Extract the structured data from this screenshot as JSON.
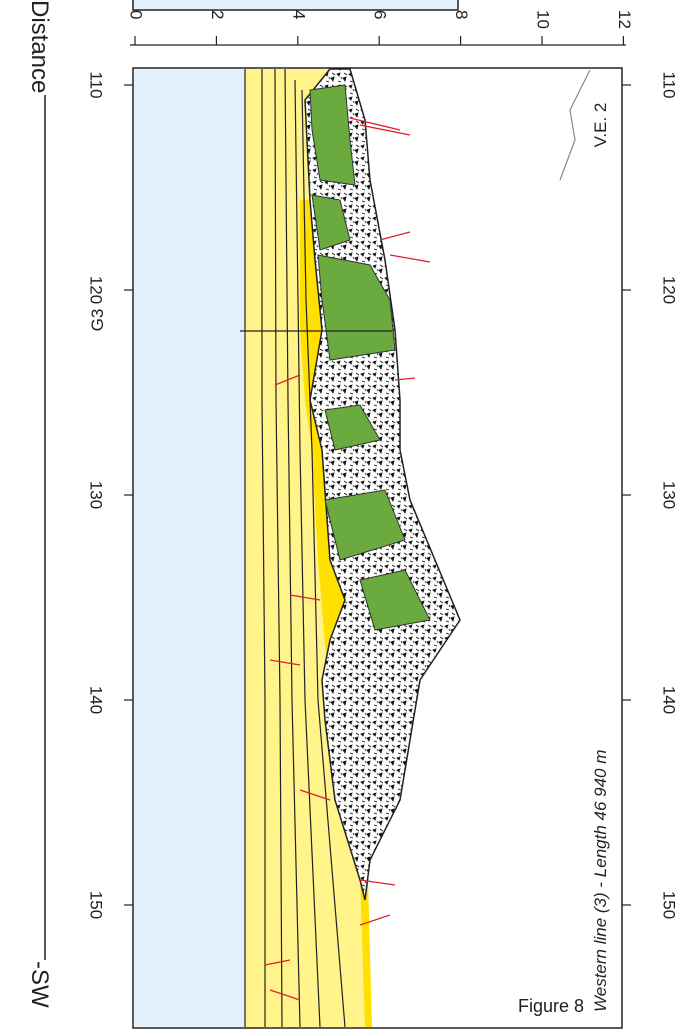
{
  "labels": {
    "axis_title": "Distance",
    "direction": "-SW",
    "well": "G3",
    "vertical_exaggeration": "V.E. 2",
    "line_name": "Western line (3) - Length 46 940 m",
    "figure": "Figure 8"
  },
  "depth_ticks": [
    0,
    2,
    4,
    6,
    8,
    10,
    12
  ],
  "distance_ticks": [
    110,
    120,
    130,
    140,
    150
  ]
}
